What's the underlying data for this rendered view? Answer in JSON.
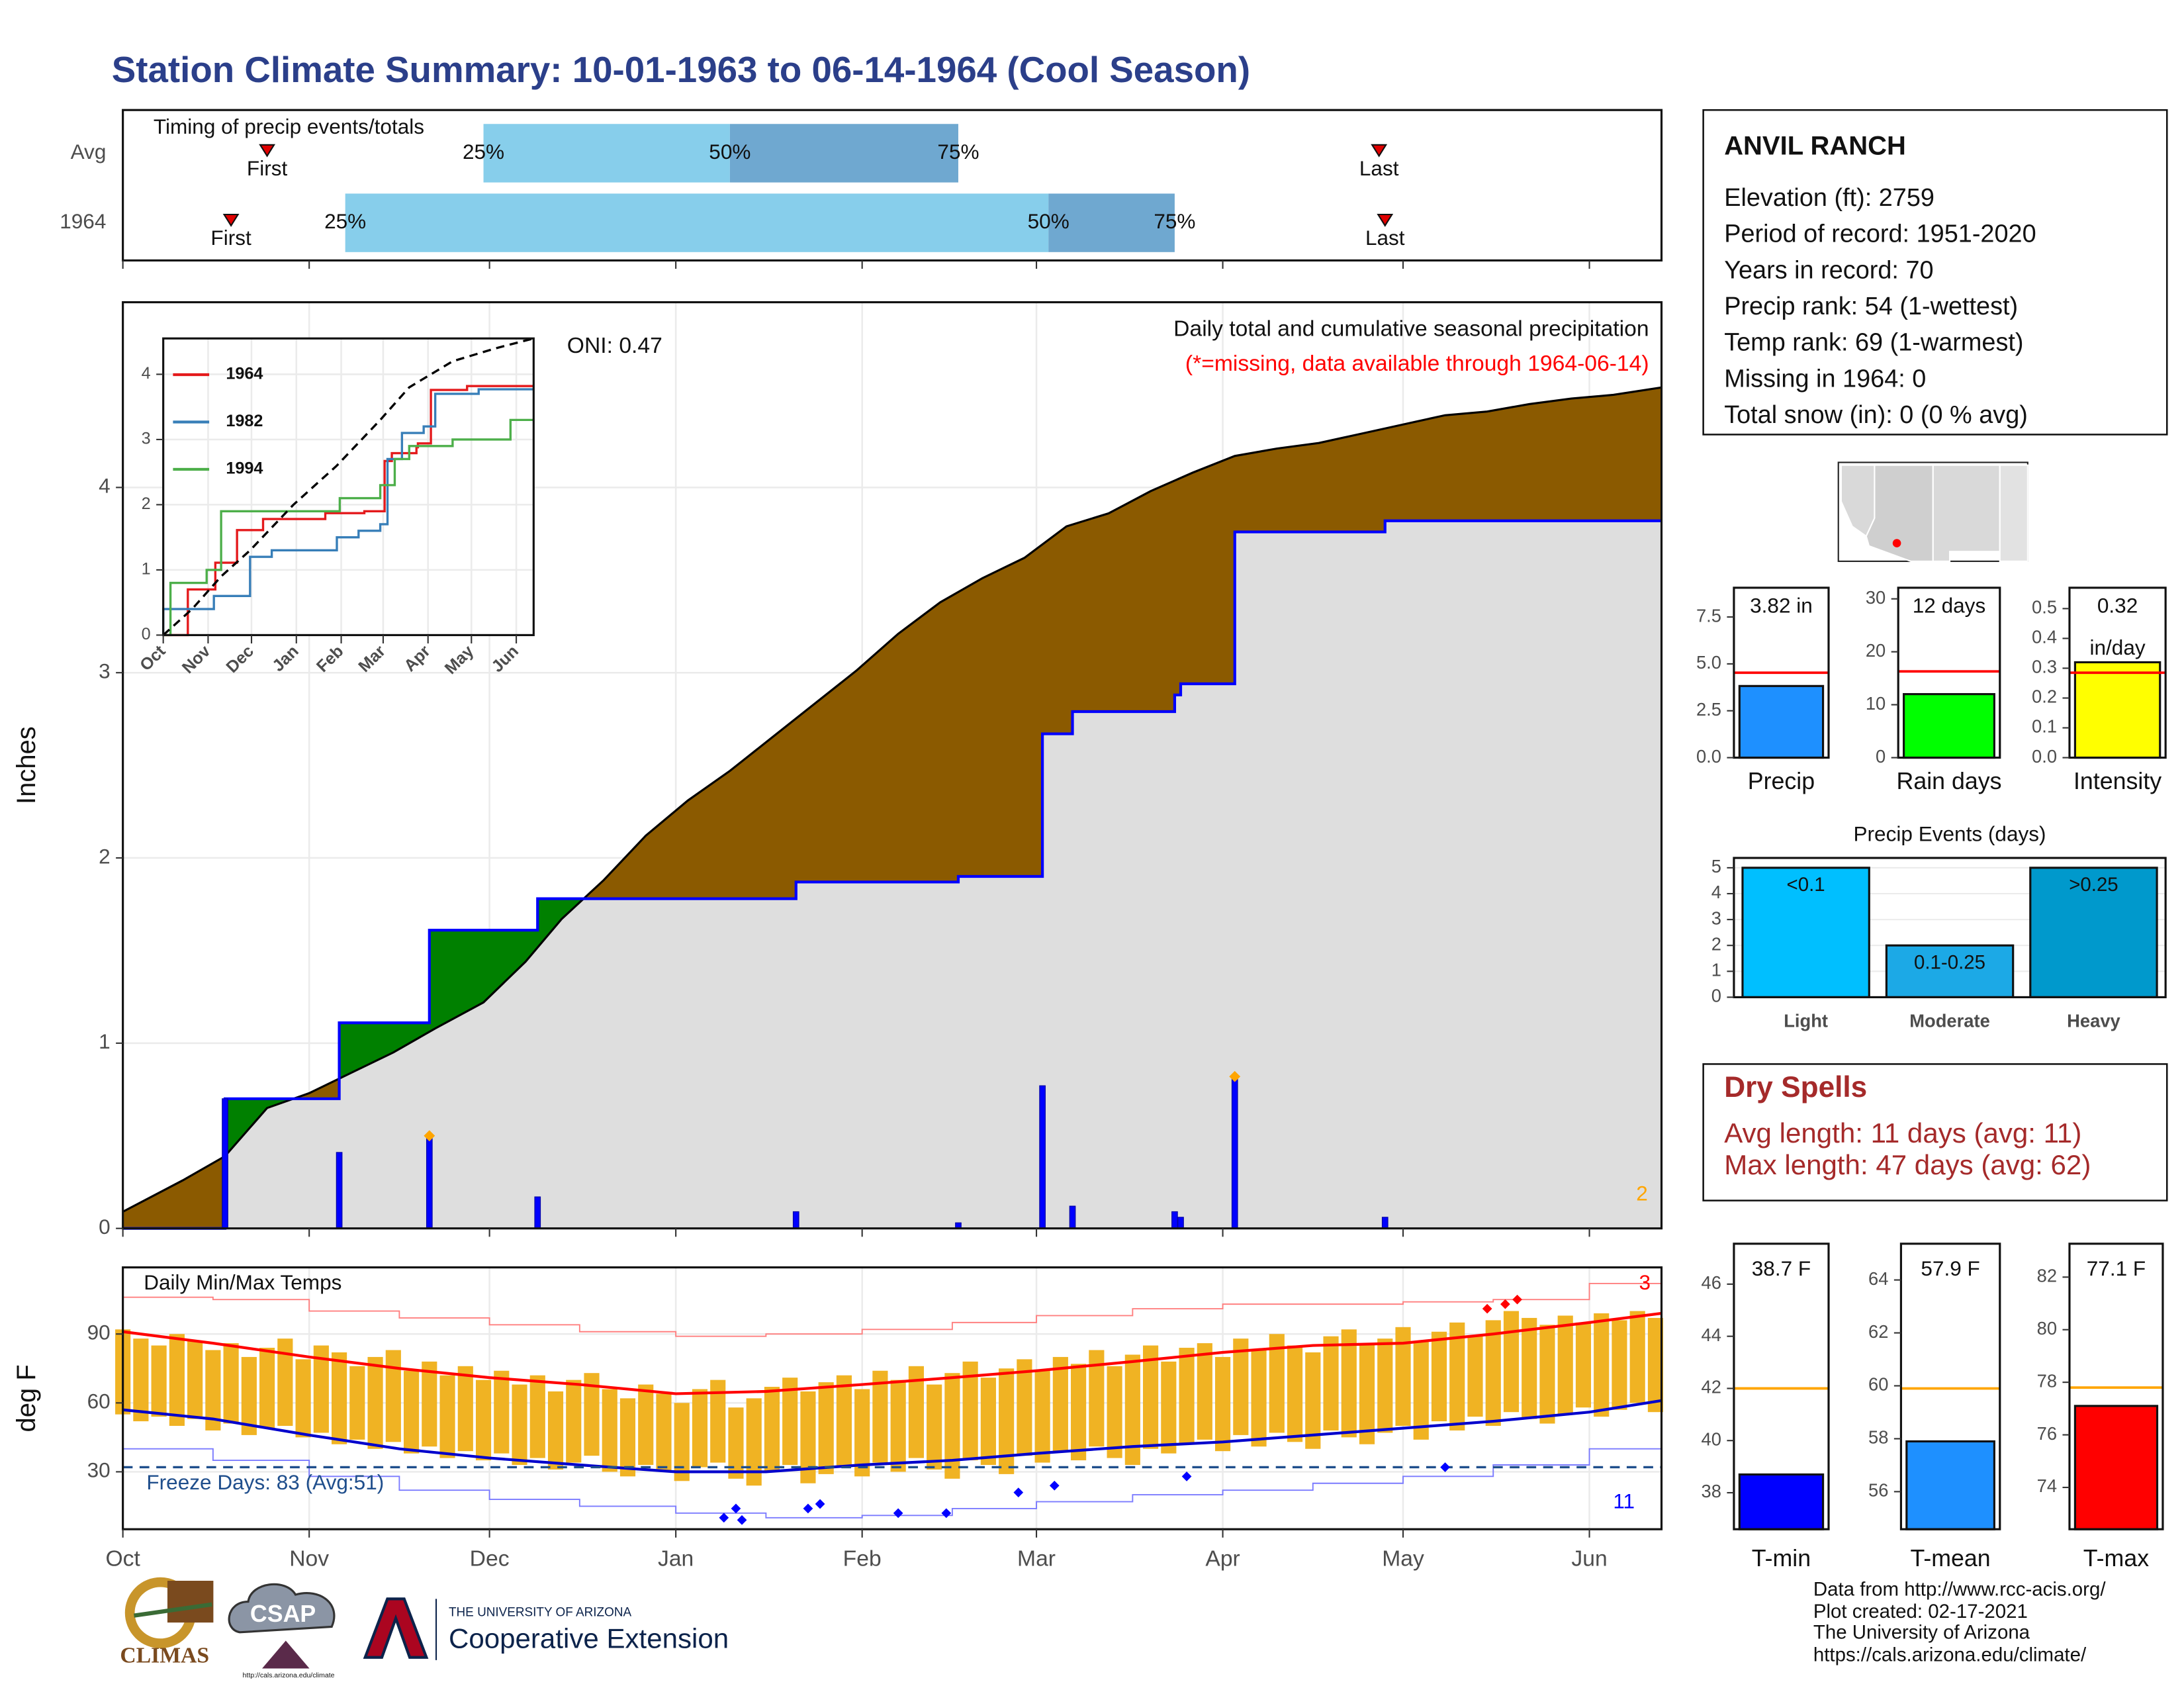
{
  "title": "Station Climate Summary: 10-01-1963 to 06-14-1964 (Cool Season)",
  "chart_data": [
    {
      "type": "timing",
      "title": "Timing of precip events/totals",
      "xlim": [
        0,
        256
      ],
      "xticks": [
        0,
        31,
        61,
        92,
        123,
        152,
        183,
        213,
        244
      ],
      "rows": [
        {
          "name": "Avg",
          "first": 24,
          "q25": 60,
          "q50": 101,
          "q75": 139,
          "last": 209
        },
        {
          "name": "1964",
          "first": 18,
          "q25": 37,
          "q50": 154,
          "q75": 175,
          "last": 210
        }
      ],
      "event_labels": {
        "first": "First",
        "last": "Last",
        "q25": "25%",
        "q50": "50%",
        "q75": "75%"
      },
      "colors": {
        "lower": "#87ceeb",
        "upper": "#6fa8d0",
        "marker": "#e00000"
      }
    },
    {
      "type": "precip",
      "ylabel": "Inches",
      "xlim": [
        0,
        256
      ],
      "xticks": [
        0,
        31,
        61,
        92,
        123,
        152,
        183,
        213,
        244
      ],
      "ylim": [
        0,
        5
      ],
      "yticks": [
        0,
        1,
        2,
        3,
        4
      ],
      "grid": true,
      "annotation": "Daily total and cumulative seasonal precipitation",
      "note": "(*=missing, data available through 1964-06-14)",
      "oni": "ONI: 0.47",
      "average": {
        "x": [
          0,
          10,
          17,
          24,
          31,
          38,
          45,
          52,
          60,
          67,
          73,
          80,
          87,
          94,
          101,
          108,
          115,
          122,
          129,
          136,
          143,
          150,
          157,
          164,
          171,
          178,
          185,
          192,
          199,
          206,
          213,
          220,
          227,
          234,
          241,
          248,
          256
        ],
        "values": [
          0.09,
          0.26,
          0.39,
          0.65,
          0.73,
          0.84,
          0.95,
          1.08,
          1.22,
          1.44,
          1.67,
          1.88,
          2.12,
          2.31,
          2.47,
          2.65,
          2.83,
          3.01,
          3.21,
          3.38,
          3.51,
          3.62,
          3.79,
          3.86,
          3.98,
          4.08,
          4.17,
          4.21,
          4.24,
          4.29,
          4.34,
          4.39,
          4.41,
          4.45,
          4.48,
          4.5,
          4.54
        ],
        "color": "#000000"
      },
      "observed": {
        "x": [
          17,
          36,
          51,
          69,
          112,
          139,
          153,
          158,
          175,
          176,
          185,
          210
        ],
        "values": [
          0.7,
          1.11,
          1.61,
          1.78,
          1.87,
          1.9,
          2.67,
          2.79,
          2.88,
          2.94,
          3.76,
          3.82
        ],
        "color": "#0000ff"
      },
      "daily": {
        "x": [
          17,
          36,
          51,
          69,
          112,
          139,
          153,
          158,
          175,
          176,
          185,
          210
        ],
        "values": [
          0.7,
          0.41,
          0.5,
          0.17,
          0.09,
          0.03,
          0.77,
          0.12,
          0.09,
          0.06,
          0.82,
          0.06
        ],
        "color": "#0000ff"
      },
      "records": {
        "x": [
          51,
          185
        ],
        "values": [
          0.5,
          0.82
        ],
        "color": "#ffa500",
        "count": 2
      },
      "fill_colors": {
        "above": "#008000",
        "below": "#8b5a00",
        "base": "#dedede"
      }
    },
    {
      "type": "line",
      "xlim": [
        0,
        256
      ],
      "xticks": [
        {
          "value": 0,
          "label": "Oct"
        },
        {
          "value": 31,
          "label": "Nov"
        },
        {
          "value": 61,
          "label": "Dec"
        },
        {
          "value": 92,
          "label": "Jan"
        },
        {
          "value": 123,
          "label": "Feb"
        },
        {
          "value": 152,
          "label": "Mar"
        },
        {
          "value": 183,
          "label": "Apr"
        },
        {
          "value": 213,
          "label": "May"
        },
        {
          "value": 244,
          "label": "Jun"
        }
      ],
      "ylim": [
        0,
        4.55
      ],
      "yticks": [
        0,
        1,
        2,
        3,
        4
      ],
      "grid": true,
      "series": [
        {
          "name": "1964",
          "color": "#e41a1c",
          "x": [
            17,
            36,
            51,
            69,
            112,
            139,
            153,
            158,
            175,
            176,
            185,
            210
          ],
          "values": [
            0.7,
            1.11,
            1.61,
            1.78,
            1.87,
            1.9,
            2.67,
            2.79,
            2.88,
            2.94,
            3.76,
            3.82
          ]
        },
        {
          "name": "1982",
          "color": "#377eb8",
          "x": [
            0,
            35,
            60,
            75,
            120,
            135,
            150,
            155,
            165,
            180,
            188,
            218
          ],
          "values": [
            0.4,
            0.6,
            1.2,
            1.3,
            1.5,
            1.6,
            1.7,
            2.7,
            3.1,
            3.2,
            3.7,
            3.77
          ]
        },
        {
          "name": "1994",
          "color": "#4daf4a",
          "x": [
            5,
            30,
            40,
            122,
            150,
            160,
            170,
            200,
            240
          ],
          "values": [
            0.8,
            1.0,
            1.9,
            2.1,
            2.3,
            2.7,
            2.9,
            3.0,
            3.3
          ]
        }
      ],
      "average": {
        "x": [
          0,
          20,
          40,
          60,
          90,
          120,
          150,
          170,
          200,
          230,
          256
        ],
        "values": [
          0,
          0.4,
          0.9,
          1.3,
          2.0,
          2.6,
          3.3,
          3.8,
          4.2,
          4.4,
          4.55
        ],
        "color": "#000000"
      }
    },
    {
      "type": "temps",
      "title": "Daily Min/Max Temps",
      "ylabel": "deg F",
      "xlim": [
        0,
        256
      ],
      "xticks": [
        {
          "value": 0,
          "label": "Oct"
        },
        {
          "value": 31,
          "label": "Nov"
        },
        {
          "value": 61,
          "label": "Dec"
        },
        {
          "value": 92,
          "label": "Jan"
        },
        {
          "value": 123,
          "label": "Feb"
        },
        {
          "value": 152,
          "label": "Mar"
        },
        {
          "value": 183,
          "label": "Apr"
        },
        {
          "value": 213,
          "label": "May"
        },
        {
          "value": 244,
          "label": "Jun"
        }
      ],
      "ylim": [
        5,
        119
      ],
      "yticks": [
        30,
        60,
        90
      ],
      "grid": true,
      "daily": {
        "x": [
          0,
          3,
          6,
          9,
          12,
          15,
          18,
          21,
          24,
          27,
          30,
          33,
          36,
          39,
          42,
          45,
          48,
          51,
          54,
          57,
          60,
          63,
          66,
          69,
          72,
          75,
          78,
          81,
          84,
          87,
          90,
          93,
          96,
          99,
          102,
          105,
          108,
          111,
          114,
          117,
          120,
          123,
          126,
          129,
          132,
          135,
          138,
          141,
          144,
          147,
          150,
          153,
          156,
          159,
          162,
          165,
          168,
          171,
          174,
          177,
          180,
          183,
          186,
          189,
          192,
          195,
          198,
          201,
          204,
          207,
          210,
          213,
          216,
          219,
          222,
          225,
          228,
          231,
          234,
          237,
          240,
          243,
          246,
          249,
          252,
          255
        ],
        "max": [
          92,
          88,
          85,
          90,
          87,
          83,
          86,
          80,
          84,
          88,
          79,
          85,
          82,
          76,
          80,
          83,
          74,
          78,
          72,
          76,
          70,
          74,
          68,
          72,
          65,
          70,
          73,
          66,
          62,
          68,
          64,
          60,
          66,
          70,
          58,
          62,
          67,
          71,
          65,
          69,
          72,
          66,
          74,
          70,
          76,
          68,
          73,
          78,
          71,
          75,
          79,
          74,
          80,
          77,
          83,
          76,
          81,
          85,
          78,
          84,
          86,
          80,
          88,
          83,
          90,
          85,
          82,
          89,
          92,
          86,
          88,
          93,
          87,
          91,
          95,
          89,
          96,
          100,
          97,
          94,
          98,
          95,
          99,
          96,
          100,
          97
        ],
        "min": [
          55,
          52,
          54,
          50,
          53,
          48,
          51,
          46,
          49,
          50,
          45,
          47,
          42,
          44,
          40,
          43,
          38,
          41,
          36,
          39,
          35,
          38,
          33,
          36,
          31,
          34,
          37,
          30,
          28,
          33,
          30,
          26,
          32,
          34,
          27,
          24,
          30,
          33,
          25,
          29,
          32,
          28,
          34,
          30,
          36,
          31,
          27,
          35,
          33,
          29,
          37,
          34,
          39,
          35,
          41,
          36,
          33,
          40,
          38,
          42,
          44,
          39,
          46,
          41,
          47,
          43,
          40,
          48,
          45,
          42,
          47,
          50,
          44,
          52,
          48,
          54,
          50,
          56,
          53,
          51,
          55,
          58,
          54,
          57,
          60,
          56
        ],
        "color": "#f0b323"
      },
      "normal": {
        "x": [
          0,
          15,
          31,
          46,
          61,
          76,
          92,
          107,
          123,
          138,
          152,
          168,
          183,
          198,
          213,
          228,
          244,
          256
        ],
        "max": [
          91,
          86,
          80,
          75,
          71,
          68,
          64,
          65,
          68,
          71,
          74,
          78,
          82,
          85,
          86,
          90,
          95,
          99
        ],
        "min": [
          57,
          53,
          46,
          40,
          36,
          33,
          30,
          30,
          33,
          35,
          38,
          41,
          43,
          46,
          49,
          52,
          56,
          61
        ],
        "max_color": "#ff0000",
        "min_color": "#0000cc"
      },
      "record": {
        "x": [
          0,
          15,
          31,
          46,
          61,
          76,
          92,
          107,
          123,
          138,
          152,
          168,
          183,
          198,
          213,
          228,
          244,
          256
        ],
        "high": [
          106,
          105,
          100,
          97,
          94,
          91,
          89,
          90,
          92,
          95,
          98,
          101,
          103,
          103,
          104,
          105,
          112,
          115
        ],
        "low": [
          40,
          35,
          28,
          22,
          18,
          15,
          12,
          10,
          11,
          14,
          17,
          20,
          22,
          25,
          28,
          33,
          40,
          48
        ],
        "high_color": "#ff8080",
        "low_color": "#7b7bff"
      },
      "freeze": {
        "value": 32,
        "label": "Freeze Days: 83 (Avg:51)",
        "color": "#1f4e8c"
      },
      "new_highs": {
        "x": [
          227,
          230,
          232
        ],
        "values": [
          101,
          103,
          105
        ],
        "count": 3,
        "color": "#ff0000"
      },
      "new_lows": {
        "x": [
          100,
          102,
          103,
          114,
          116,
          129,
          137,
          149,
          155,
          177,
          220
        ],
        "values": [
          10,
          14,
          9,
          14,
          16,
          12,
          12,
          21,
          24,
          28,
          32
        ],
        "count": 11,
        "color": "#0000ff"
      }
    },
    {
      "type": "column",
      "name": "Precip",
      "value": 3.82,
      "value_label": "3.82 in",
      "normal": 4.53,
      "ylim": [
        0,
        9.06
      ],
      "yticks": [
        {
          "value": 0,
          "label": "0.0"
        },
        2.5,
        {
          "value": 5,
          "label": "5.0"
        },
        7.5
      ],
      "color": "#1e90ff",
      "normal_color": "#ff0000"
    },
    {
      "type": "column",
      "name": "Rain days",
      "value": 12,
      "value_label": "12 days",
      "normal": 16.3,
      "ylim": [
        0,
        32.1
      ],
      "yticks": [
        0,
        10,
        20,
        30
      ],
      "color": "#00ff00",
      "normal_color": "#ff0000"
    },
    {
      "type": "column",
      "name": "Intensity",
      "value": 0.32,
      "value_label": "0.32",
      "unit": "in/day",
      "normal": 0.285,
      "ylim": [
        0,
        0.57
      ],
      "yticks": [
        {
          "value": 0,
          "label": "0.0"
        },
        0.1,
        0.2,
        0.3,
        0.4,
        0.5
      ],
      "color": "#ffff00",
      "normal_color": "#ff0000"
    },
    {
      "type": "bar",
      "title": "Precip Events (days)",
      "categories": [
        "Light",
        "Moderate",
        "Heavy"
      ],
      "bin_labels": [
        "<0.1",
        "0.1-0.25",
        ">0.25"
      ],
      "values": [
        5,
        2,
        5
      ],
      "colors": [
        "#00bfff",
        "#1ca9e6",
        "#0099cc"
      ],
      "ylim": [
        0,
        5.38
      ],
      "yticks": [
        0,
        1,
        2,
        3,
        4,
        5
      ],
      "grid": true
    },
    {
      "type": "column",
      "name": "T-min",
      "value": 38.7,
      "value_label": "38.7 F",
      "normal": 42,
      "ylim": [
        36.6,
        47.55
      ],
      "yticks": [
        38,
        40,
        42,
        44,
        46
      ],
      "color": "#0000ff",
      "normal_color": "#ffa500"
    },
    {
      "type": "column",
      "name": "T-mean",
      "value": 57.9,
      "value_label": "57.9 F",
      "normal": 59.9,
      "ylim": [
        54.58,
        65.37
      ],
      "yticks": [
        56,
        58,
        60,
        62,
        64
      ],
      "color": "#1e90ff",
      "normal_color": "#ffa500"
    },
    {
      "type": "column",
      "name": "T-max",
      "value": 77.1,
      "value_label": "77.1 F",
      "normal": 77.8,
      "ylim": [
        72.41,
        83.27
      ],
      "yticks": [
        74,
        76,
        78,
        80,
        82
      ],
      "color": "#ff0000",
      "normal_color": "#ffa500"
    }
  ],
  "station": {
    "name": "ANVIL RANCH",
    "lines": [
      "Elevation (ft): 2759",
      "Period of record: 1951-2020",
      "Years in record: 70",
      "Precip rank: 54 (1-wettest)",
      "Temp rank: 69 (1-warmest)",
      "Missing in 1964: 0",
      "Total snow (in): 0 (0 % avg)"
    ]
  },
  "dry_spells": {
    "title": "Dry Spells",
    "lines": [
      "Avg length: 11 days (avg: 11)",
      "Max length: 47 days (avg: 62)"
    ]
  },
  "credits": [
    "Data from http://www.rcc-acis.org/",
    "Plot created: 02-17-2021",
    "The University of Arizona",
    "https://cals.arizona.edu/climate/"
  ],
  "logos": {
    "climas": "CLIMAS",
    "csap": "CSAP",
    "csap_url": "http://cals.arizona.edu/climate",
    "ua": "THE UNIVERSITY OF ARIZONA",
    "extension": "Cooperative Extension"
  }
}
